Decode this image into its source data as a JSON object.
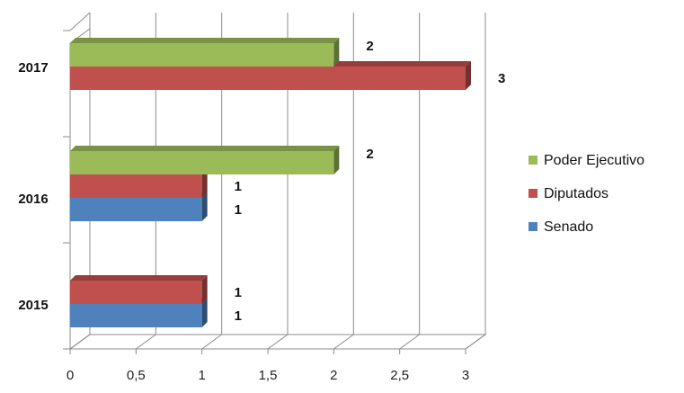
{
  "chart_data": {
    "type": "bar",
    "orientation": "horizontal",
    "style": "3d-clustered",
    "categories": [
      "2015",
      "2016",
      "2017"
    ],
    "series": [
      {
        "name": "Senado",
        "color": "#4F81BD",
        "values": [
          1,
          1,
          0
        ]
      },
      {
        "name": "Diputados",
        "color": "#C0504D",
        "values": [
          1,
          1,
          3
        ]
      },
      {
        "name": "Poder Ejecutivo",
        "color": "#9BBB59",
        "values": [
          0,
          2,
          2
        ]
      }
    ],
    "x_ticks": [
      "0",
      "0,5",
      "1",
      "1,5",
      "2",
      "2,5",
      "3"
    ],
    "xlim": [
      0,
      3
    ],
    "grid": true,
    "legend_position": "right"
  }
}
